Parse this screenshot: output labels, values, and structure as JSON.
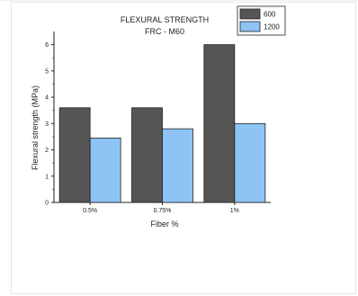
{
  "chart_data": {
    "type": "bar",
    "title": "FLEXURAL STRENGTH",
    "subtitle": "FRC - M60",
    "xlabel": "Fiber %",
    "ylabel": "Flexural strength (MPa)",
    "categories": [
      "0.5%",
      "0.75%",
      "1%"
    ],
    "series": [
      {
        "name": "600",
        "values": [
          3.6,
          3.6,
          6.0
        ],
        "color": "#555555"
      },
      {
        "name": "1200",
        "values": [
          2.45,
          2.8,
          3.0
        ],
        "color": "#8ec3f5"
      }
    ],
    "ylim": [
      0,
      6.5
    ],
    "yticks": [
      0,
      1,
      2,
      3,
      4,
      5,
      6
    ],
    "grid": false,
    "legend_position": "top-right"
  }
}
